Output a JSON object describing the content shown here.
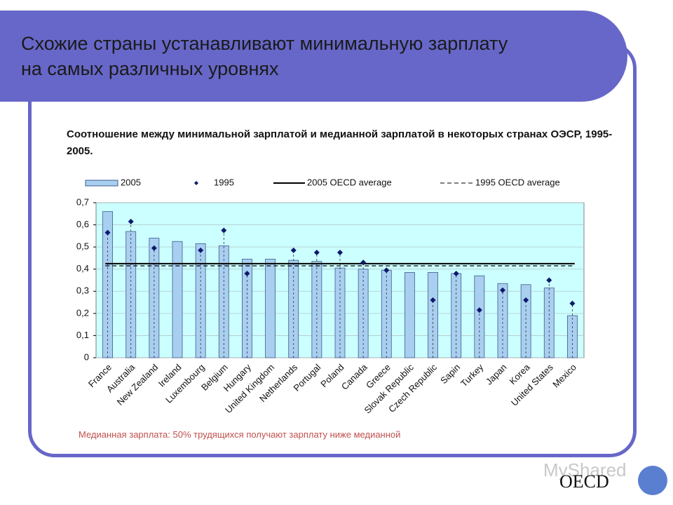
{
  "slide": {
    "title": "Схожие страны устанавливают минимальную зарплату на самых различных уровнях",
    "watermark": "MyShared",
    "logo": "OECD"
  },
  "chart_data": {
    "type": "bar",
    "title": "Соотношение между минимальной зарплатой и медианной зарплатой в некоторых странах ОЭСР, 1995-2005.",
    "note": "Медианная зарплата: 50% трудящихся получают зарплату ниже медианной",
    "categories": [
      "France",
      "Australia",
      "New Zealand",
      "Ireland",
      "Luxembourg",
      "Belgium",
      "Hungary",
      "United Kingdom",
      "Netherlands",
      "Portugal",
      "Poland",
      "Canada",
      "Greece",
      "Slovak Republic",
      "Czech Republic",
      "Sapin",
      "Turkey",
      "Japan",
      "Korea",
      "United States",
      "Mexico"
    ],
    "series": [
      {
        "name": "2005",
        "color": "#a9cff0",
        "values": [
          0.66,
          0.57,
          0.54,
          0.525,
          0.515,
          0.505,
          0.445,
          0.445,
          0.44,
          0.435,
          0.405,
          0.4,
          0.395,
          0.385,
          0.385,
          0.38,
          0.37,
          0.335,
          0.33,
          0.315,
          0.19
        ]
      },
      {
        "name": "1995",
        "color": "#0d1a6b",
        "marker": "diamond",
        "values": [
          0.565,
          0.615,
          0.495,
          null,
          0.485,
          0.575,
          0.38,
          null,
          0.485,
          0.475,
          0.475,
          0.43,
          0.395,
          null,
          0.26,
          0.38,
          0.215,
          0.305,
          0.26,
          0.35,
          0.245
        ]
      }
    ],
    "reference_lines": [
      {
        "name": "2005 OECD average",
        "value": 0.425,
        "style": "solid",
        "color": "#000000"
      },
      {
        "name": "1995 OECD average",
        "value": 0.415,
        "style": "dashed",
        "color": "#000000"
      }
    ],
    "ylim": [
      0,
      0.7
    ],
    "yticks": [
      0,
      {
        "value": 0.1,
        "label": "0,1"
      },
      {
        "value": 0.2,
        "label": "0,2"
      },
      {
        "value": 0.3,
        "label": "0,3"
      },
      {
        "value": 0.4,
        "label": "0,4"
      },
      {
        "value": 0.5,
        "label": "0,5"
      },
      {
        "value": 0.6,
        "label": "0,6"
      },
      {
        "value": 0.7,
        "label": "0,7"
      }
    ],
    "grid": true
  }
}
